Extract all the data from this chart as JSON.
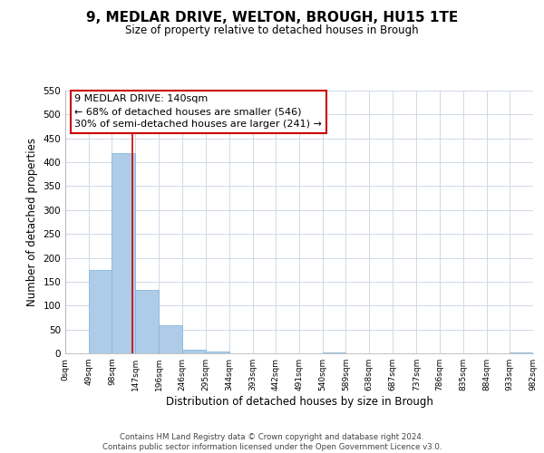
{
  "title": "9, MEDLAR DRIVE, WELTON, BROUGH, HU15 1TE",
  "subtitle": "Size of property relative to detached houses in Brough",
  "xlabel": "Distribution of detached houses by size in Brough",
  "ylabel": "Number of detached properties",
  "footer_line1": "Contains HM Land Registry data © Crown copyright and database right 2024.",
  "footer_line2": "Contains public sector information licensed under the Open Government Licence v3.0.",
  "bin_edges": [
    0,
    49,
    98,
    147,
    196,
    246,
    295,
    344,
    393,
    442,
    491,
    540,
    589,
    638,
    687,
    737,
    786,
    835,
    884,
    933,
    982
  ],
  "bar_heights": [
    0,
    175,
    420,
    133,
    58,
    7,
    3,
    0,
    0,
    0,
    0,
    2,
    0,
    0,
    0,
    0,
    0,
    0,
    0,
    2
  ],
  "bar_color": "#aecce8",
  "bar_edgecolor": "#88b8d8",
  "vline_x": 140,
  "vline_color": "#cc0000",
  "annotation_text": "9 MEDLAR DRIVE: 140sqm\n← 68% of detached houses are smaller (546)\n30% of semi-detached houses are larger (241) →",
  "annotation_box_edgecolor": "#cc0000",
  "annotation_text_color": "black",
  "ylim": [
    0,
    550
  ],
  "yticks": [
    0,
    50,
    100,
    150,
    200,
    250,
    300,
    350,
    400,
    450,
    500,
    550
  ],
  "tick_labels": [
    "0sqm",
    "49sqm",
    "98sqm",
    "147sqm",
    "196sqm",
    "246sqm",
    "295sqm",
    "344sqm",
    "393sqm",
    "442sqm",
    "491sqm",
    "540sqm",
    "589sqm",
    "638sqm",
    "687sqm",
    "737sqm",
    "786sqm",
    "835sqm",
    "884sqm",
    "933sqm",
    "982sqm"
  ],
  "background_color": "#ffffff",
  "grid_color": "#d0d8e8"
}
